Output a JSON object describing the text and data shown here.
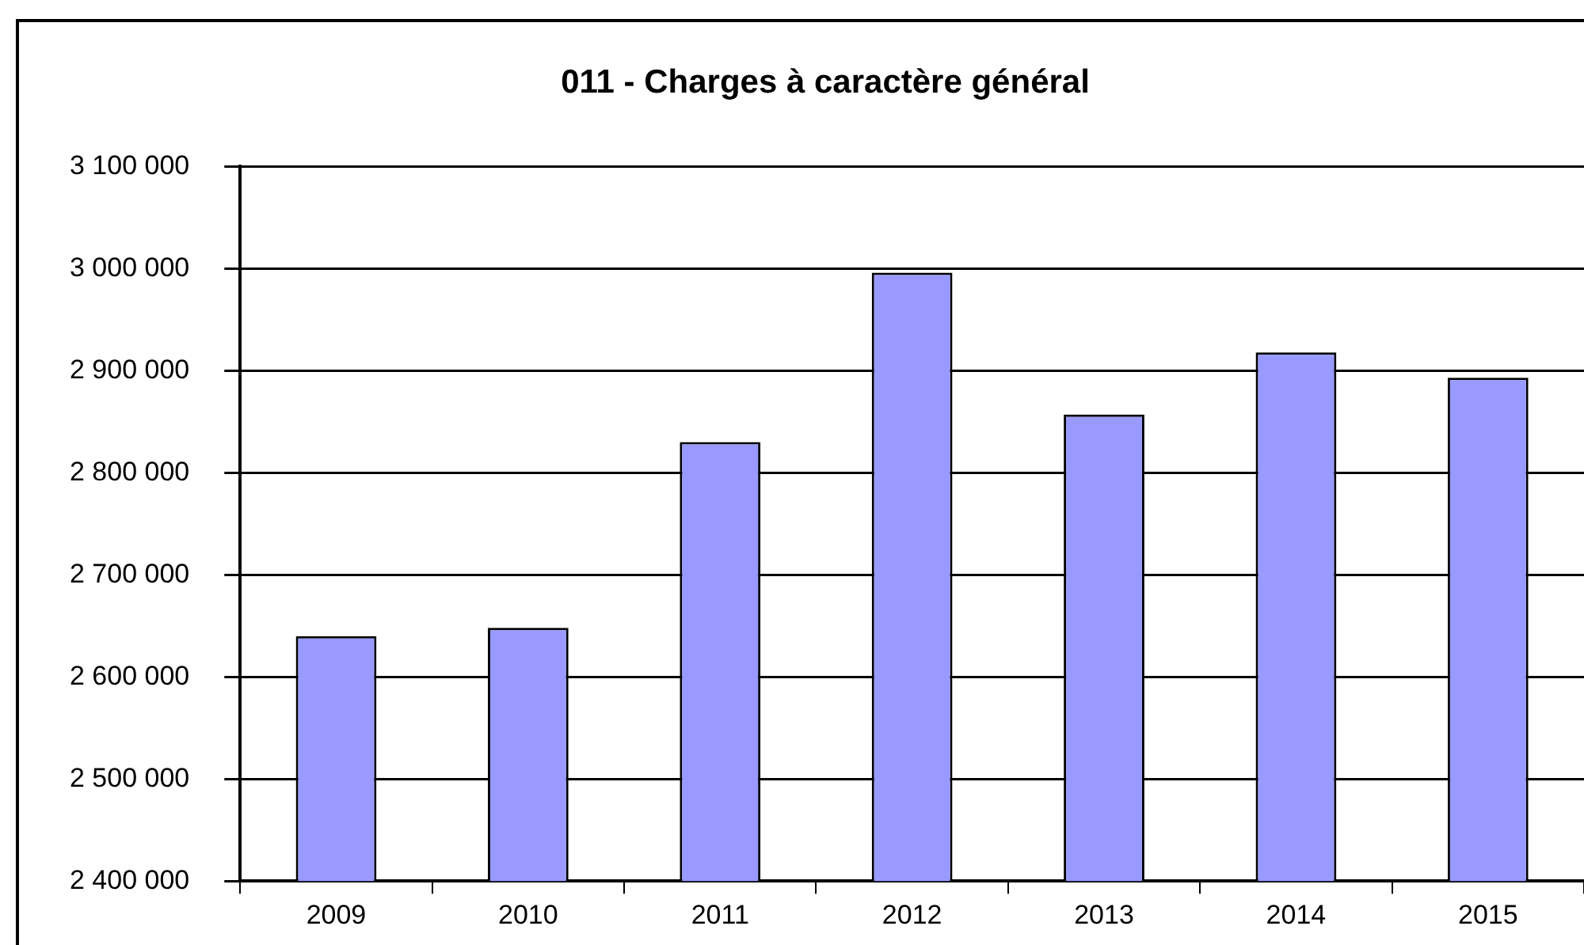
{
  "chart_data": {
    "type": "bar",
    "title": "011 - Charges à caractère général",
    "categories": [
      "2009",
      "2010",
      "2011",
      "2012",
      "2013",
      "2014",
      "2015"
    ],
    "values": [
      2640000,
      2648000,
      2830000,
      2996000,
      2857000,
      2918000,
      2893000
    ],
    "color": "#9999ff",
    "ylim": [
      2400000,
      3100000
    ],
    "yticks": [
      {
        "value": 2400000,
        "label": "2 400 000"
      },
      {
        "value": 2500000,
        "label": "2 500 000"
      },
      {
        "value": 2600000,
        "label": "2 600 000"
      },
      {
        "value": 2700000,
        "label": "2 700 000"
      },
      {
        "value": 2800000,
        "label": "2 800 000"
      },
      {
        "value": 2900000,
        "label": "2 900 000"
      },
      {
        "value": 3000000,
        "label": "3 000 000"
      },
      {
        "value": 3100000,
        "label": "3 100 000"
      }
    ],
    "grid": "y",
    "legend": false
  }
}
